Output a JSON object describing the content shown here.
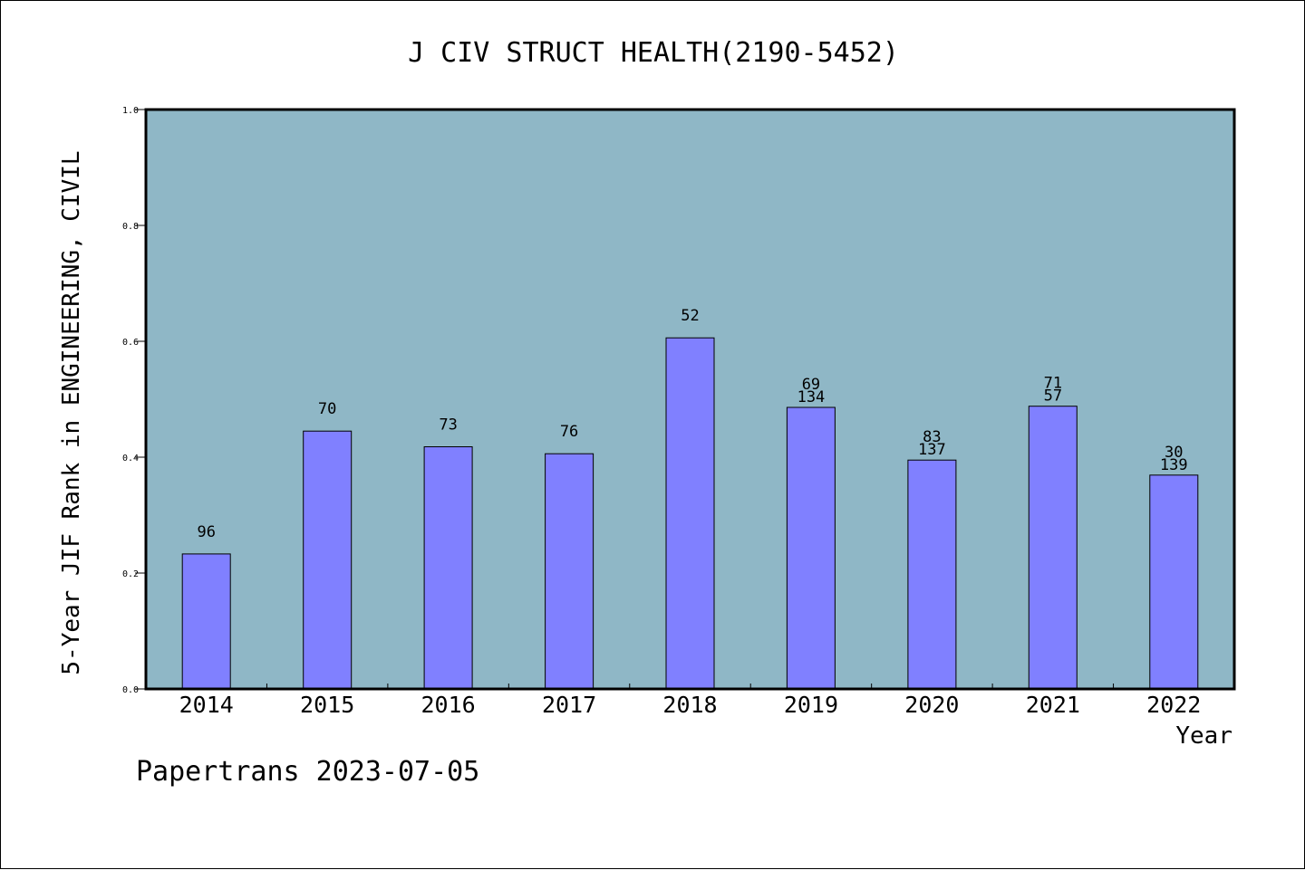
{
  "footer": {
    "text": "Papertrans 2023-07-05"
  },
  "colors": {
    "plot_bg": "#8fb7c6",
    "bar_fill": "#8080ff",
    "bar_stroke": "#000000",
    "axis": "#000000"
  },
  "chart_data": {
    "type": "bar",
    "title": "J CIV STRUCT HEALTH(2190-5452)",
    "xlabel": "Year",
    "ylabel": "5-Year JIF Rank in ENGINEERING, CIVIL",
    "ylim": [
      0,
      1.0
    ],
    "yticks": [
      "0.0",
      "0.2",
      "0.4",
      "0.6",
      "0.8",
      "1.0"
    ],
    "ytick_values": [
      0,
      0.2,
      0.4,
      0.6,
      0.8,
      1.0
    ],
    "grid": false,
    "categories": [
      "2014",
      "2015",
      "2016",
      "2017",
      "2018",
      "2019",
      "2020",
      "2021",
      "2022"
    ],
    "values": [
      0.233,
      0.445,
      0.418,
      0.406,
      0.606,
      0.486,
      0.395,
      0.488,
      0.369
    ],
    "bar_labels": [
      [
        "96"
      ],
      [
        "70"
      ],
      [
        "73"
      ],
      [
        "76"
      ],
      [
        "52"
      ],
      [
        "69",
        "134"
      ],
      [
        "83",
        "137"
      ],
      [
        "71",
        "57"
      ],
      [
        "30",
        "139"
      ]
    ]
  }
}
